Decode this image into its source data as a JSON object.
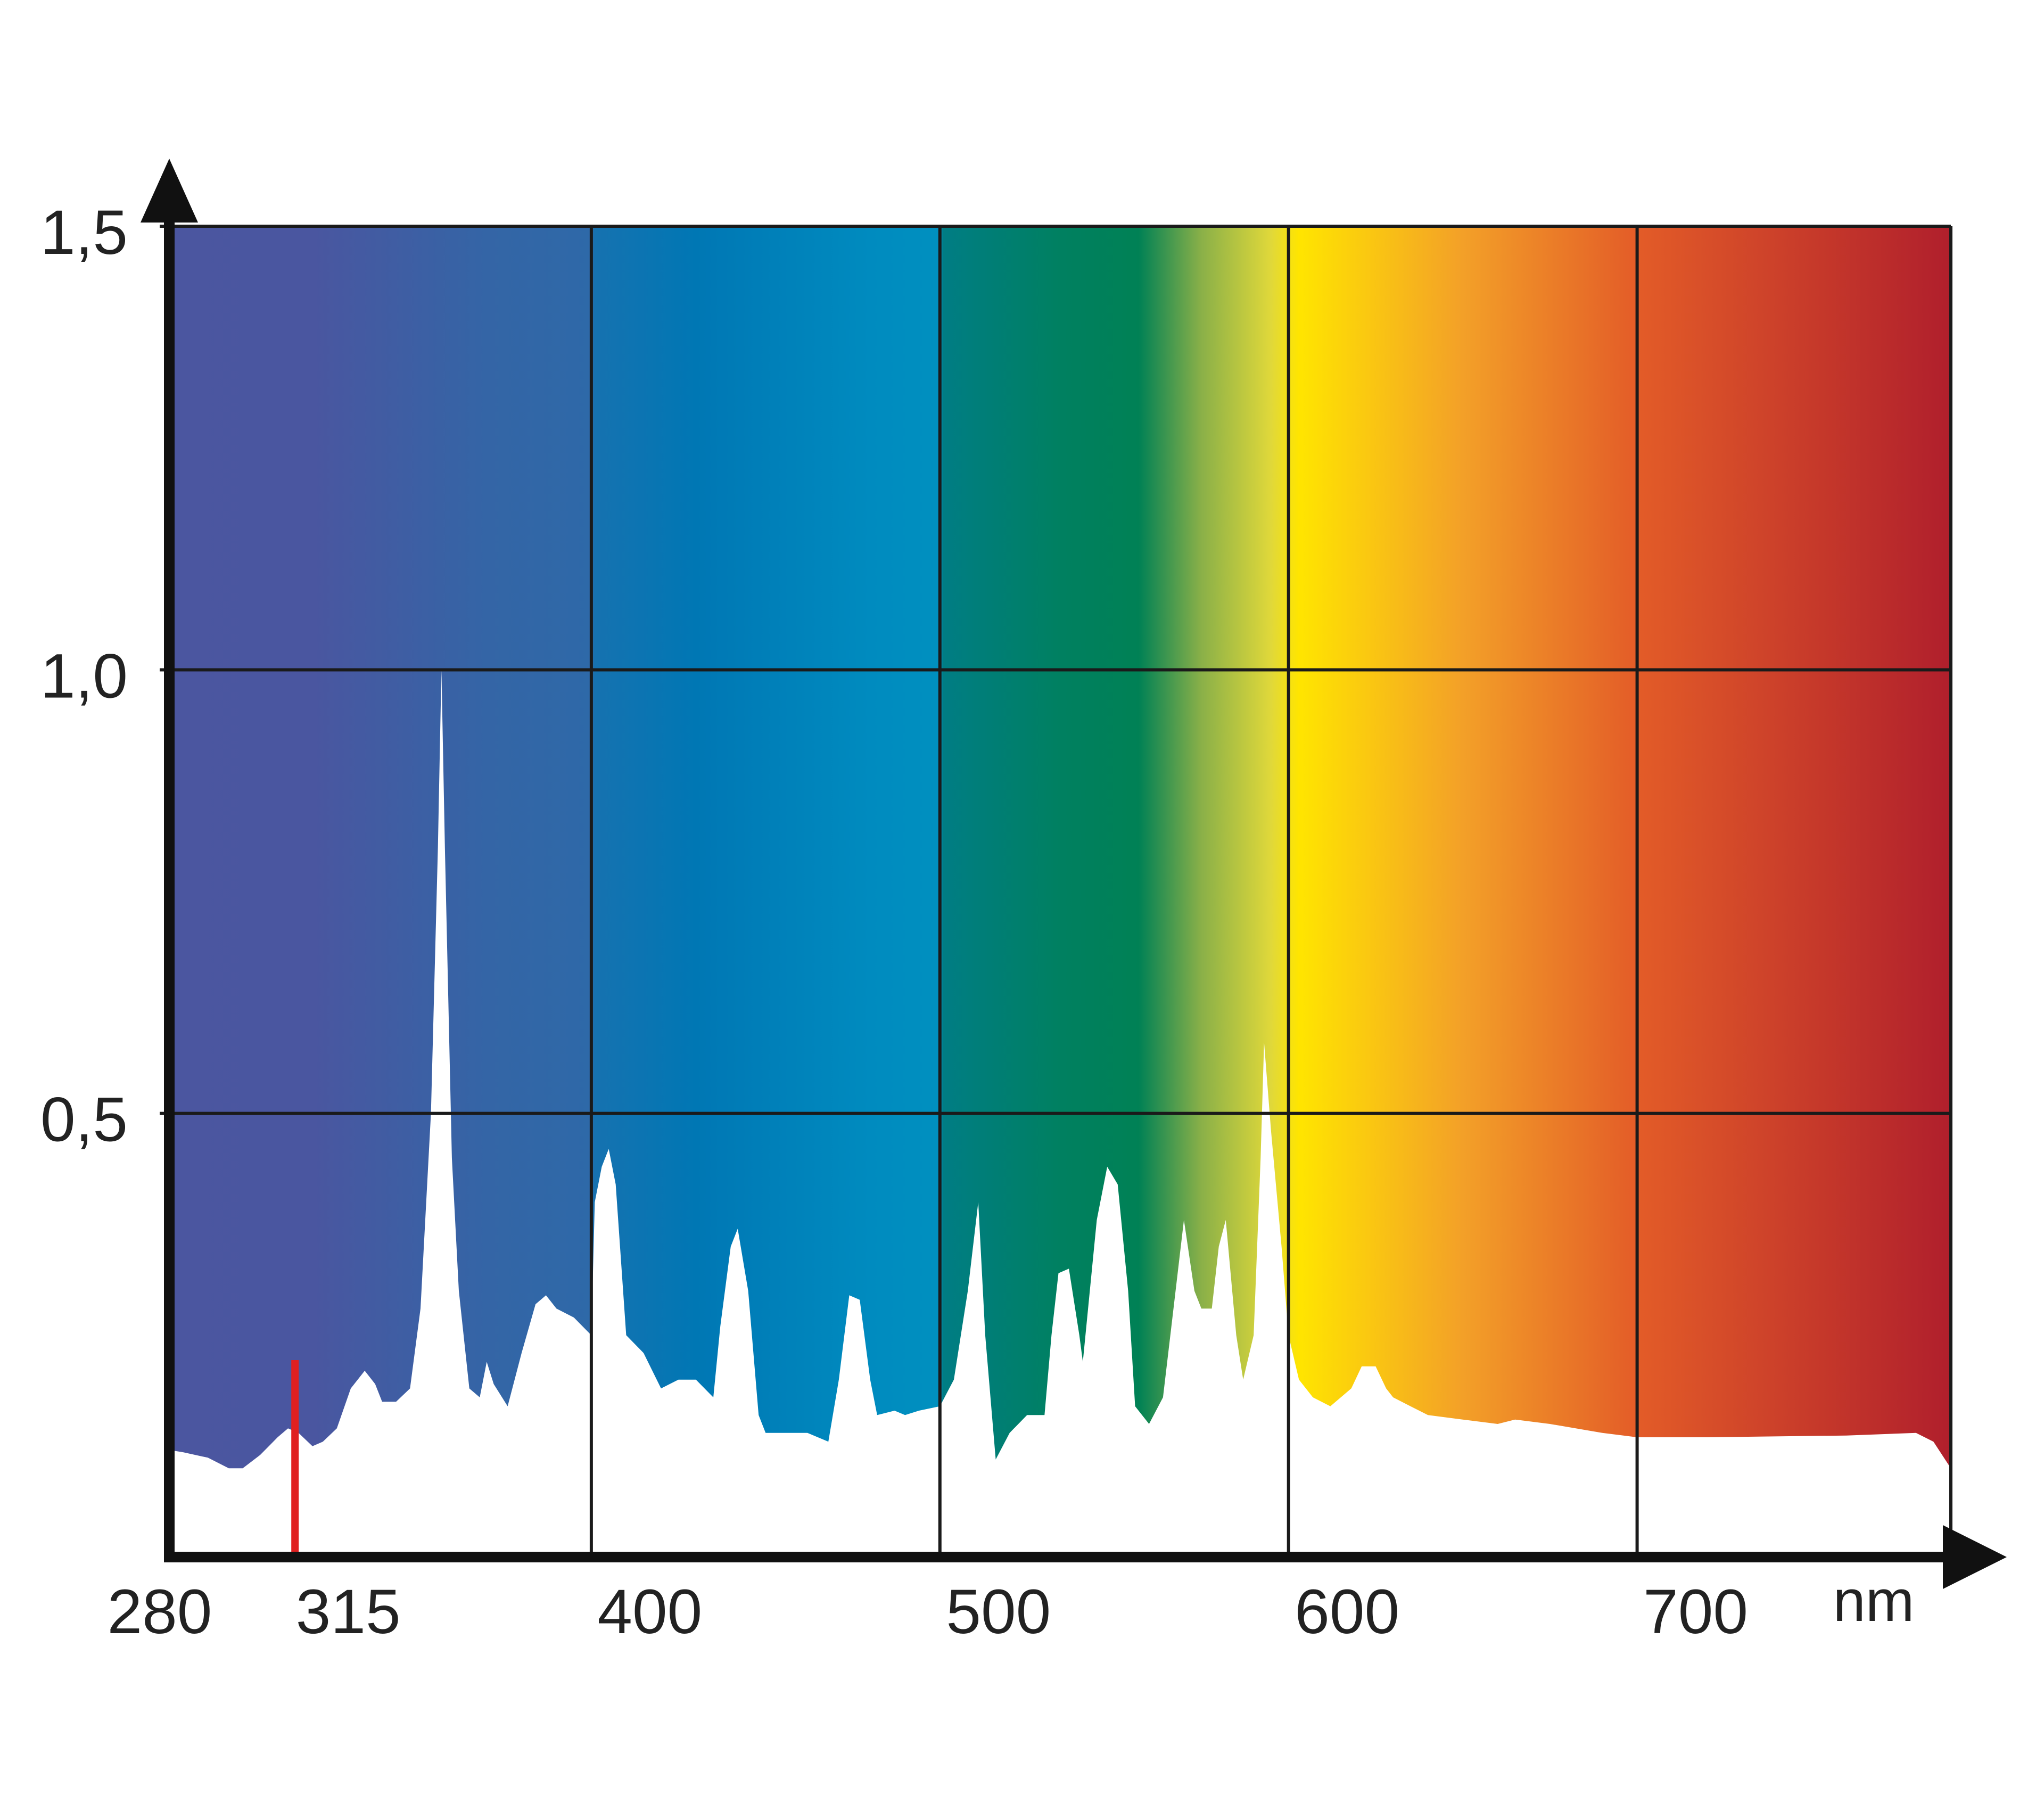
{
  "chart_data": {
    "type": "area",
    "title": "",
    "xlabel": "",
    "x_unit_label": "nm",
    "ylabel": "",
    "xlim": [
      280,
      790
    ],
    "ylim": [
      0,
      1.5
    ],
    "grid": true,
    "x_ticks": [
      {
        "value": 280,
        "label": "280"
      },
      {
        "value": 315,
        "label": "315"
      },
      {
        "value": 400,
        "label": "400"
      },
      {
        "value": 500,
        "label": "500"
      },
      {
        "value": 600,
        "label": "600"
      },
      {
        "value": 700,
        "label": "700"
      }
    ],
    "x_gridlines": [
      400,
      500,
      600,
      700
    ],
    "y_ticks": [
      {
        "value": 0.5,
        "label": "0,5"
      },
      {
        "value": 1.0,
        "label": "1,0"
      },
      {
        "value": 1.5,
        "label": "1,5"
      }
    ],
    "markers": [
      {
        "x": 315,
        "color": "#e02020"
      }
    ],
    "spectrum_colors": [
      {
        "x": 280,
        "color": "#4b56a0"
      },
      {
        "x": 320,
        "color": "#4a56a0"
      },
      {
        "x": 370,
        "color": "#3465a6"
      },
      {
        "x": 400,
        "color": "#2e69a8"
      },
      {
        "x": 401,
        "color": "#1672b0"
      },
      {
        "x": 430,
        "color": "#0077b4"
      },
      {
        "x": 480,
        "color": "#008bbf"
      },
      {
        "x": 500,
        "color": "#0090bf"
      },
      {
        "x": 501,
        "color": "#007d84"
      },
      {
        "x": 535,
        "color": "#008060"
      },
      {
        "x": 557,
        "color": "#008155"
      },
      {
        "x": 575,
        "color": "#8ab048"
      },
      {
        "x": 595,
        "color": "#e0d83a"
      },
      {
        "x": 603,
        "color": "#ffe500"
      },
      {
        "x": 650,
        "color": "#f3a028"
      },
      {
        "x": 700,
        "color": "#e35c28"
      },
      {
        "x": 790,
        "color": "#b01f2c"
      }
    ],
    "series": [
      {
        "values": [
          [
            280,
            0.12
          ],
          [
            283,
            0.118
          ],
          [
            290,
            0.112
          ],
          [
            296,
            0.1
          ],
          [
            300,
            0.1
          ],
          [
            305,
            0.115
          ],
          [
            310,
            0.135
          ],
          [
            313,
            0.145
          ],
          [
            316,
            0.14
          ],
          [
            320,
            0.125
          ],
          [
            323,
            0.13
          ],
          [
            327,
            0.145
          ],
          [
            331,
            0.19
          ],
          [
            335,
            0.21
          ],
          [
            338,
            0.195
          ],
          [
            340,
            0.175
          ],
          [
            344,
            0.175
          ],
          [
            348,
            0.19
          ],
          [
            351,
            0.28
          ],
          [
            354,
            0.5
          ],
          [
            356,
            0.8
          ],
          [
            357,
            1.0
          ],
          [
            358,
            0.8
          ],
          [
            360,
            0.45
          ],
          [
            362,
            0.3
          ],
          [
            365,
            0.19
          ],
          [
            368,
            0.18
          ],
          [
            370,
            0.22
          ],
          [
            372,
            0.195
          ],
          [
            376,
            0.17
          ],
          [
            380,
            0.23
          ],
          [
            384,
            0.285
          ],
          [
            387,
            0.295
          ],
          [
            390,
            0.28
          ],
          [
            395,
            0.27
          ],
          [
            400,
            0.25
          ],
          [
            401,
            0.4
          ],
          [
            403,
            0.44
          ],
          [
            405,
            0.46
          ],
          [
            407,
            0.42
          ],
          [
            410,
            0.25
          ],
          [
            415,
            0.23
          ],
          [
            420,
            0.19
          ],
          [
            425,
            0.2
          ],
          [
            430,
            0.2
          ],
          [
            435,
            0.18
          ],
          [
            437,
            0.26
          ],
          [
            440,
            0.35
          ],
          [
            442,
            0.37
          ],
          [
            445,
            0.3
          ],
          [
            448,
            0.16
          ],
          [
            450,
            0.14
          ],
          [
            455,
            0.14
          ],
          [
            462,
            0.14
          ],
          [
            468,
            0.13
          ],
          [
            471,
            0.2
          ],
          [
            474,
            0.295
          ],
          [
            477,
            0.29
          ],
          [
            480,
            0.2
          ],
          [
            482,
            0.16
          ],
          [
            487,
            0.165
          ],
          [
            490,
            0.16
          ],
          [
            494,
            0.165
          ],
          [
            500,
            0.17
          ],
          [
            504,
            0.2
          ],
          [
            508,
            0.3
          ],
          [
            511,
            0.4
          ],
          [
            513,
            0.25
          ],
          [
            516,
            0.11
          ],
          [
            520,
            0.14
          ],
          [
            525,
            0.16
          ],
          [
            530,
            0.16
          ],
          [
            532,
            0.25
          ],
          [
            534,
            0.32
          ],
          [
            537,
            0.325
          ],
          [
            540,
            0.25
          ],
          [
            541,
            0.22
          ],
          [
            545,
            0.38
          ],
          [
            548,
            0.44
          ],
          [
            551,
            0.42
          ],
          [
            554,
            0.3
          ],
          [
            556,
            0.17
          ],
          [
            560,
            0.15
          ],
          [
            564,
            0.18
          ],
          [
            567,
            0.28
          ],
          [
            570,
            0.38
          ],
          [
            573,
            0.3
          ],
          [
            575,
            0.28
          ],
          [
            578,
            0.28
          ],
          [
            580,
            0.35
          ],
          [
            582,
            0.38
          ],
          [
            585,
            0.25
          ],
          [
            587,
            0.2
          ],
          [
            590,
            0.25
          ],
          [
            592,
            0.45
          ],
          [
            593,
            0.58
          ],
          [
            595,
            0.48
          ],
          [
            598,
            0.35
          ],
          [
            600,
            0.25
          ],
          [
            603,
            0.2
          ],
          [
            607,
            0.18
          ],
          [
            612,
            0.17
          ],
          [
            618,
            0.19
          ],
          [
            621,
            0.215
          ],
          [
            625,
            0.215
          ],
          [
            628,
            0.19
          ],
          [
            630,
            0.18
          ],
          [
            635,
            0.17
          ],
          [
            640,
            0.16
          ],
          [
            650,
            0.155
          ],
          [
            660,
            0.15
          ],
          [
            665,
            0.155
          ],
          [
            675,
            0.15
          ],
          [
            690,
            0.14
          ],
          [
            700,
            0.135
          ],
          [
            720,
            0.135
          ],
          [
            760,
            0.137
          ],
          [
            780,
            0.14
          ],
          [
            785,
            0.13
          ],
          [
            790,
            0.1
          ]
        ]
      }
    ]
  }
}
